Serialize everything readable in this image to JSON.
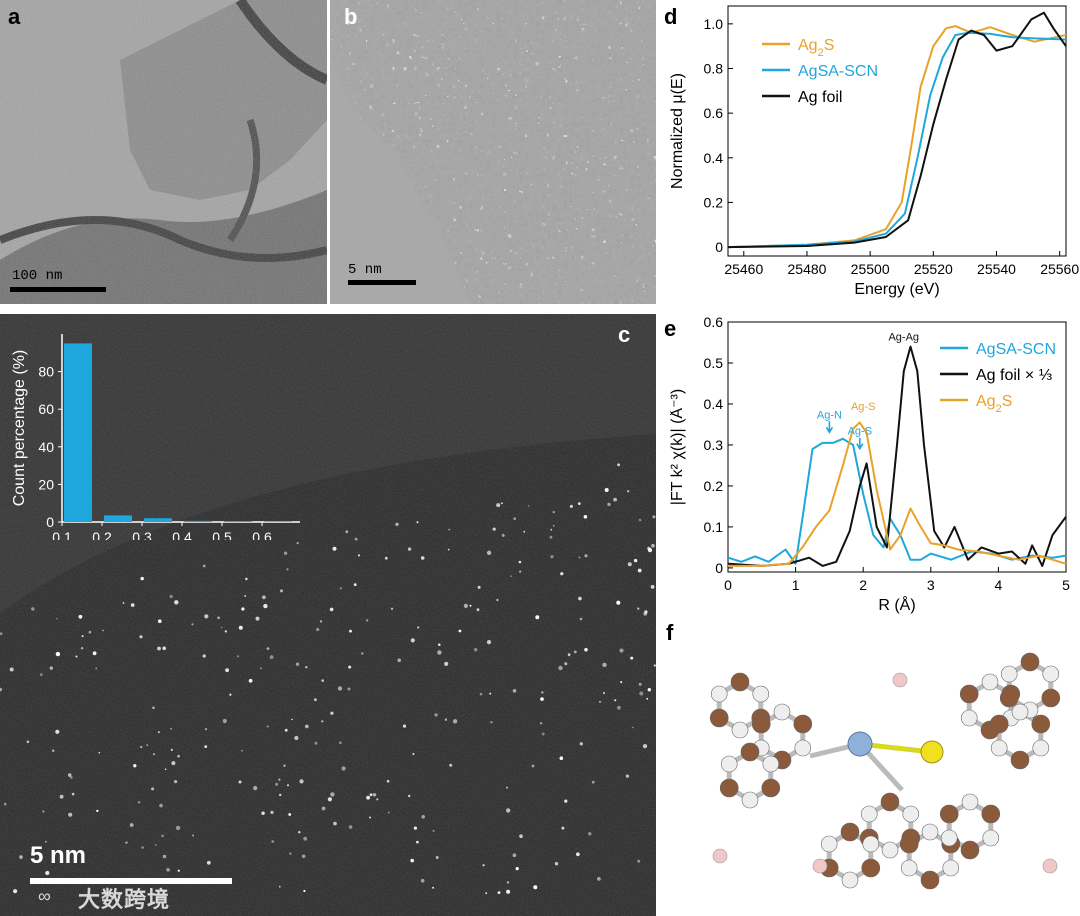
{
  "panels": {
    "a": {
      "label": "a",
      "scalebar": "100 nm"
    },
    "b": {
      "label": "b",
      "scalebar": "5 nm"
    },
    "c": {
      "label": "c",
      "scalebar": "5 nm"
    },
    "d": {
      "label": "d"
    },
    "e": {
      "label": "e"
    },
    "f": {
      "label": "f"
    }
  },
  "watermark": "大数跨境",
  "colors": {
    "ag2s": "#e8a22a",
    "agsa": "#1ea7dd",
    "agfoil": "#111111",
    "carbon": "#8a5a3a",
    "hydrogen": "#eeeeee",
    "ag": "#8fb0d8",
    "sulfur": "#f0e020",
    "pink": "#f0c8c8"
  },
  "chart_data": [
    {
      "id": "c-inset",
      "type": "bar",
      "ylabel": "Count percentage (%)",
      "xunit": "nm",
      "x_ticks": [
        "0.1",
        "0.2",
        "0.3",
        "0.4",
        "0.5",
        "0.6"
      ],
      "y_ticks": [
        "0",
        "20",
        "40",
        "60",
        "80"
      ],
      "ylim": [
        0,
        100
      ],
      "xlim": [
        0.1,
        0.7
      ],
      "bins": [
        {
          "x0": 0.1,
          "x1": 0.17,
          "value": 95
        },
        {
          "x0": 0.2,
          "x1": 0.27,
          "value": 3.5
        },
        {
          "x0": 0.3,
          "x1": 0.37,
          "value": 2
        },
        {
          "x0": 0.4,
          "x1": 0.47,
          "value": 0.6
        },
        {
          "x0": 0.5,
          "x1": 0.57,
          "value": 0.5
        },
        {
          "x0": 0.6,
          "x1": 0.67,
          "value": 0.2
        }
      ]
    },
    {
      "id": "d",
      "type": "line",
      "xlabel": "Energy (eV)",
      "ylabel": "Normalized μ(E)",
      "xlim": [
        25455,
        25562
      ],
      "ylim": [
        -0.04,
        1.08
      ],
      "x_ticks": [
        25460,
        25480,
        25500,
        25520,
        25540,
        25560
      ],
      "y_ticks": [
        0,
        0.2,
        0.4,
        0.6,
        0.8,
        1.0
      ],
      "y_tick_labels": [
        "0",
        "0.2",
        "0.4",
        "0.6",
        "0.8",
        "1.0"
      ],
      "legend_position": "top-left",
      "series": [
        {
          "name": "Ag2S",
          "label_main": "Ag",
          "label_sub": "2",
          "label_tail": "S",
          "color": "#e8a22a",
          "points": [
            [
              25455,
              0
            ],
            [
              25480,
              0.01
            ],
            [
              25495,
              0.03
            ],
            [
              25505,
              0.08
            ],
            [
              25510,
              0.2
            ],
            [
              25513,
              0.45
            ],
            [
              25516,
              0.72
            ],
            [
              25520,
              0.9
            ],
            [
              25524,
              0.98
            ],
            [
              25527,
              0.99
            ],
            [
              25532,
              0.96
            ],
            [
              25538,
              0.985
            ],
            [
              25545,
              0.95
            ],
            [
              25552,
              0.92
            ],
            [
              25562,
              0.95
            ]
          ]
        },
        {
          "name": "AgSA-SCN",
          "label_main": "AgSA-SCN",
          "label_sub": "",
          "label_tail": "",
          "color": "#1ea7dd",
          "points": [
            [
              25455,
              0
            ],
            [
              25480,
              0.01
            ],
            [
              25495,
              0.025
            ],
            [
              25505,
              0.06
            ],
            [
              25511,
              0.15
            ],
            [
              25515,
              0.4
            ],
            [
              25519,
              0.68
            ],
            [
              25523,
              0.85
            ],
            [
              25527,
              0.95
            ],
            [
              25531,
              0.96
            ],
            [
              25538,
              0.955
            ],
            [
              25545,
              0.94
            ],
            [
              25552,
              0.935
            ],
            [
              25562,
              0.93
            ]
          ]
        },
        {
          "name": "Ag foil",
          "label_main": "Ag foil",
          "label_sub": "",
          "label_tail": "",
          "color": "#111111",
          "points": [
            [
              25455,
              0
            ],
            [
              25480,
              0.005
            ],
            [
              25495,
              0.02
            ],
            [
              25505,
              0.045
            ],
            [
              25512,
              0.12
            ],
            [
              25516,
              0.32
            ],
            [
              25520,
              0.55
            ],
            [
              25524,
              0.75
            ],
            [
              25528,
              0.93
            ],
            [
              25532,
              0.97
            ],
            [
              25536,
              0.95
            ],
            [
              25540,
              0.88
            ],
            [
              25545,
              0.9
            ],
            [
              25551,
              1.02
            ],
            [
              25555,
              1.05
            ],
            [
              25558,
              0.98
            ],
            [
              25562,
              0.9
            ]
          ]
        }
      ]
    },
    {
      "id": "e",
      "type": "line",
      "xlabel": "R (Å)",
      "ylabel": "|FT k² χ(k)| (Å⁻³)",
      "xlim": [
        0,
        5
      ],
      "ylim": [
        -0.01,
        0.6
      ],
      "x_ticks": [
        0,
        1,
        2,
        3,
        4,
        5
      ],
      "y_ticks": [
        0,
        0.1,
        0.2,
        0.3,
        0.4,
        0.5,
        0.6
      ],
      "y_tick_labels": [
        "0",
        "0.1",
        "0.2",
        "0.3",
        "0.4",
        "0.5",
        "0.6"
      ],
      "legend_position": "top-right",
      "annotations": [
        {
          "text": "Ag-Ag",
          "x": 2.6,
          "y": 0.555,
          "color": "#111111"
        },
        {
          "text": "Ag-N",
          "x": 1.5,
          "y": 0.365,
          "color": "#1ea7dd",
          "arrow": true
        },
        {
          "text": "Ag-S",
          "x": 2.0,
          "y": 0.385,
          "color": "#e8a22a"
        },
        {
          "text": "Ag-S",
          "x": 1.95,
          "y": 0.325,
          "color": "#1ea7dd",
          "arrow": true
        }
      ],
      "series": [
        {
          "name": "AgSA-SCN",
          "label_main": "AgSA-SCN",
          "label_sub": "",
          "label_tail": "",
          "color": "#1ea7dd",
          "points": [
            [
              0,
              0.025
            ],
            [
              0.2,
              0.015
            ],
            [
              0.4,
              0.028
            ],
            [
              0.6,
              0.015
            ],
            [
              0.85,
              0.045
            ],
            [
              1.0,
              0.01
            ],
            [
              1.1,
              0.12
            ],
            [
              1.25,
              0.29
            ],
            [
              1.4,
              0.305
            ],
            [
              1.55,
              0.305
            ],
            [
              1.7,
              0.315
            ],
            [
              1.85,
              0.3
            ],
            [
              2.0,
              0.18
            ],
            [
              2.15,
              0.08
            ],
            [
              2.3,
              0.05
            ],
            [
              2.4,
              0.12
            ],
            [
              2.55,
              0.08
            ],
            [
              2.7,
              0.02
            ],
            [
              2.85,
              0.02
            ],
            [
              3.0,
              0.035
            ],
            [
              3.3,
              0.02
            ],
            [
              3.6,
              0.04
            ],
            [
              3.9,
              0.035
            ],
            [
              4.2,
              0.02
            ],
            [
              4.5,
              0.03
            ],
            [
              4.8,
              0.025
            ],
            [
              5.0,
              0.03
            ]
          ]
        },
        {
          "name": "Ag foil × ⅓",
          "label_main": "Ag foil × ⅓",
          "label_sub": "",
          "label_tail": "",
          "color": "#111111",
          "points": [
            [
              0,
              0.01
            ],
            [
              0.5,
              0.005
            ],
            [
              0.9,
              0.01
            ],
            [
              1.2,
              0.025
            ],
            [
              1.4,
              0.005
            ],
            [
              1.6,
              0.015
            ],
            [
              1.8,
              0.09
            ],
            [
              1.95,
              0.2
            ],
            [
              2.05,
              0.255
            ],
            [
              2.2,
              0.1
            ],
            [
              2.35,
              0.05
            ],
            [
              2.5,
              0.3
            ],
            [
              2.6,
              0.48
            ],
            [
              2.7,
              0.54
            ],
            [
              2.8,
              0.48
            ],
            [
              2.9,
              0.3
            ],
            [
              3.05,
              0.09
            ],
            [
              3.2,
              0.05
            ],
            [
              3.35,
              0.1
            ],
            [
              3.55,
              0.02
            ],
            [
              3.75,
              0.05
            ],
            [
              4.0,
              0.035
            ],
            [
              4.2,
              0.04
            ],
            [
              4.4,
              0.01
            ],
            [
              4.5,
              0.055
            ],
            [
              4.65,
              0.005
            ],
            [
              4.8,
              0.08
            ],
            [
              5.0,
              0.125
            ]
          ]
        },
        {
          "name": "Ag2S",
          "label_main": "Ag",
          "label_sub": "2",
          "label_tail": "S",
          "color": "#e8a22a",
          "points": [
            [
              0,
              0.005
            ],
            [
              0.5,
              0.005
            ],
            [
              0.9,
              0.01
            ],
            [
              1.1,
              0.05
            ],
            [
              1.3,
              0.1
            ],
            [
              1.5,
              0.14
            ],
            [
              1.7,
              0.25
            ],
            [
              1.85,
              0.34
            ],
            [
              1.95,
              0.355
            ],
            [
              2.05,
              0.33
            ],
            [
              2.2,
              0.19
            ],
            [
              2.4,
              0.045
            ],
            [
              2.55,
              0.08
            ],
            [
              2.7,
              0.145
            ],
            [
              2.85,
              0.1
            ],
            [
              3.0,
              0.06
            ],
            [
              3.2,
              0.055
            ],
            [
              3.4,
              0.045
            ],
            [
              3.7,
              0.04
            ],
            [
              4.0,
              0.03
            ],
            [
              4.3,
              0.02
            ],
            [
              4.6,
              0.03
            ],
            [
              5.0,
              0.01
            ]
          ]
        }
      ]
    }
  ]
}
